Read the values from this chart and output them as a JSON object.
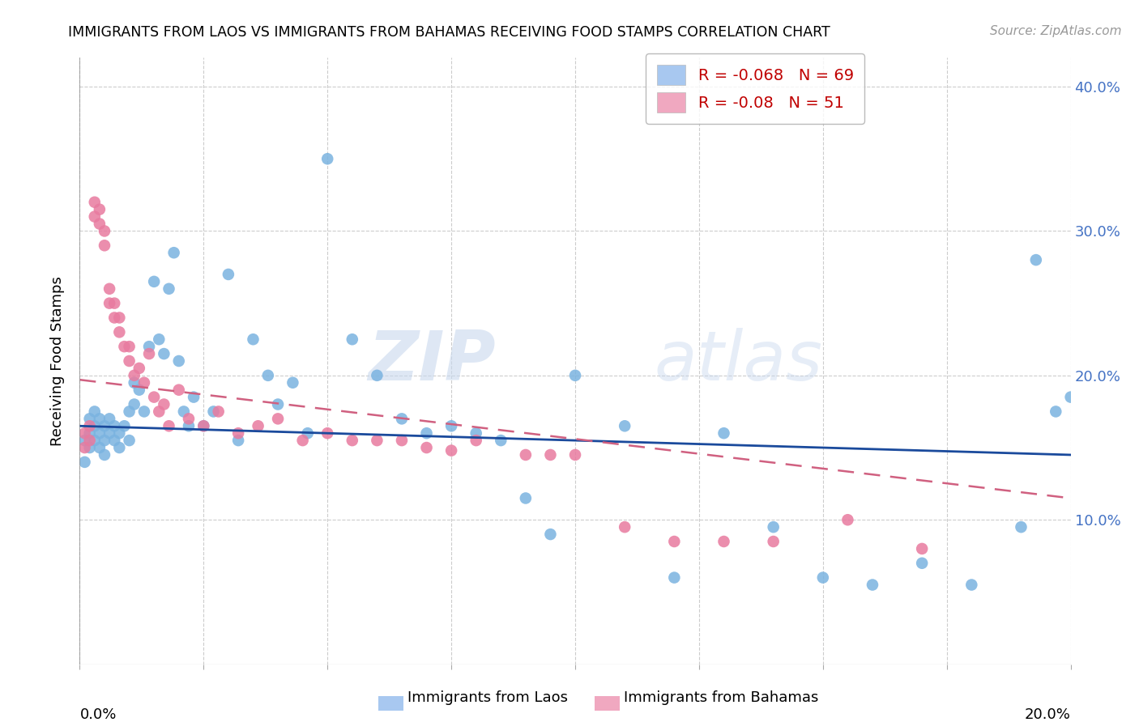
{
  "title": "IMMIGRANTS FROM LAOS VS IMMIGRANTS FROM BAHAMAS RECEIVING FOOD STAMPS CORRELATION CHART",
  "source": "Source: ZipAtlas.com",
  "ylabel": "Receiving Food Stamps",
  "legend_laos": {
    "R": -0.068,
    "N": 69,
    "color": "#a8c8f0",
    "label": "Immigrants from Laos"
  },
  "legend_bahamas": {
    "R": -0.08,
    "N": 51,
    "color": "#f0a8c0",
    "label": "Immigrants from Bahamas"
  },
  "watermark_zip": "ZIP",
  "watermark_atlas": "atlas",
  "laos_scatter_color": "#7ab3e0",
  "bahamas_scatter_color": "#e87a9f",
  "laos_line_color": "#1a4a9c",
  "bahamas_line_color": "#d06080",
  "bg_color": "#ffffff",
  "xlim": [
    0.0,
    0.2
  ],
  "ylim": [
    0.0,
    0.42
  ],
  "laos_x": [
    0.001,
    0.001,
    0.002,
    0.002,
    0.002,
    0.003,
    0.003,
    0.003,
    0.004,
    0.004,
    0.004,
    0.005,
    0.005,
    0.005,
    0.006,
    0.006,
    0.007,
    0.007,
    0.008,
    0.008,
    0.009,
    0.01,
    0.01,
    0.011,
    0.011,
    0.012,
    0.013,
    0.014,
    0.015,
    0.016,
    0.017,
    0.018,
    0.019,
    0.02,
    0.021,
    0.022,
    0.023,
    0.025,
    0.027,
    0.03,
    0.032,
    0.035,
    0.038,
    0.04,
    0.043,
    0.046,
    0.05,
    0.055,
    0.06,
    0.065,
    0.07,
    0.075,
    0.08,
    0.085,
    0.09,
    0.095,
    0.1,
    0.11,
    0.12,
    0.13,
    0.14,
    0.15,
    0.16,
    0.17,
    0.18,
    0.19,
    0.193,
    0.197,
    0.2
  ],
  "laos_y": [
    0.155,
    0.14,
    0.15,
    0.16,
    0.17,
    0.155,
    0.165,
    0.175,
    0.15,
    0.16,
    0.17,
    0.145,
    0.155,
    0.165,
    0.16,
    0.17,
    0.155,
    0.165,
    0.15,
    0.16,
    0.165,
    0.155,
    0.175,
    0.18,
    0.195,
    0.19,
    0.175,
    0.22,
    0.265,
    0.225,
    0.215,
    0.26,
    0.285,
    0.21,
    0.175,
    0.165,
    0.185,
    0.165,
    0.175,
    0.27,
    0.155,
    0.225,
    0.2,
    0.18,
    0.195,
    0.16,
    0.35,
    0.225,
    0.2,
    0.17,
    0.16,
    0.165,
    0.16,
    0.155,
    0.115,
    0.09,
    0.2,
    0.165,
    0.06,
    0.16,
    0.095,
    0.06,
    0.055,
    0.07,
    0.055,
    0.095,
    0.28,
    0.175,
    0.185
  ],
  "bahamas_x": [
    0.001,
    0.001,
    0.002,
    0.002,
    0.003,
    0.003,
    0.004,
    0.004,
    0.005,
    0.005,
    0.006,
    0.006,
    0.007,
    0.007,
    0.008,
    0.008,
    0.009,
    0.01,
    0.01,
    0.011,
    0.012,
    0.013,
    0.014,
    0.015,
    0.016,
    0.017,
    0.018,
    0.02,
    0.022,
    0.025,
    0.028,
    0.032,
    0.036,
    0.04,
    0.045,
    0.05,
    0.055,
    0.06,
    0.065,
    0.07,
    0.075,
    0.08,
    0.09,
    0.095,
    0.1,
    0.11,
    0.12,
    0.13,
    0.14,
    0.155,
    0.17
  ],
  "bahamas_y": [
    0.15,
    0.16,
    0.155,
    0.165,
    0.31,
    0.32,
    0.305,
    0.315,
    0.29,
    0.3,
    0.25,
    0.26,
    0.24,
    0.25,
    0.23,
    0.24,
    0.22,
    0.21,
    0.22,
    0.2,
    0.205,
    0.195,
    0.215,
    0.185,
    0.175,
    0.18,
    0.165,
    0.19,
    0.17,
    0.165,
    0.175,
    0.16,
    0.165,
    0.17,
    0.155,
    0.16,
    0.155,
    0.155,
    0.155,
    0.15,
    0.148,
    0.155,
    0.145,
    0.145,
    0.145,
    0.095,
    0.085,
    0.085,
    0.085,
    0.1,
    0.08
  ]
}
